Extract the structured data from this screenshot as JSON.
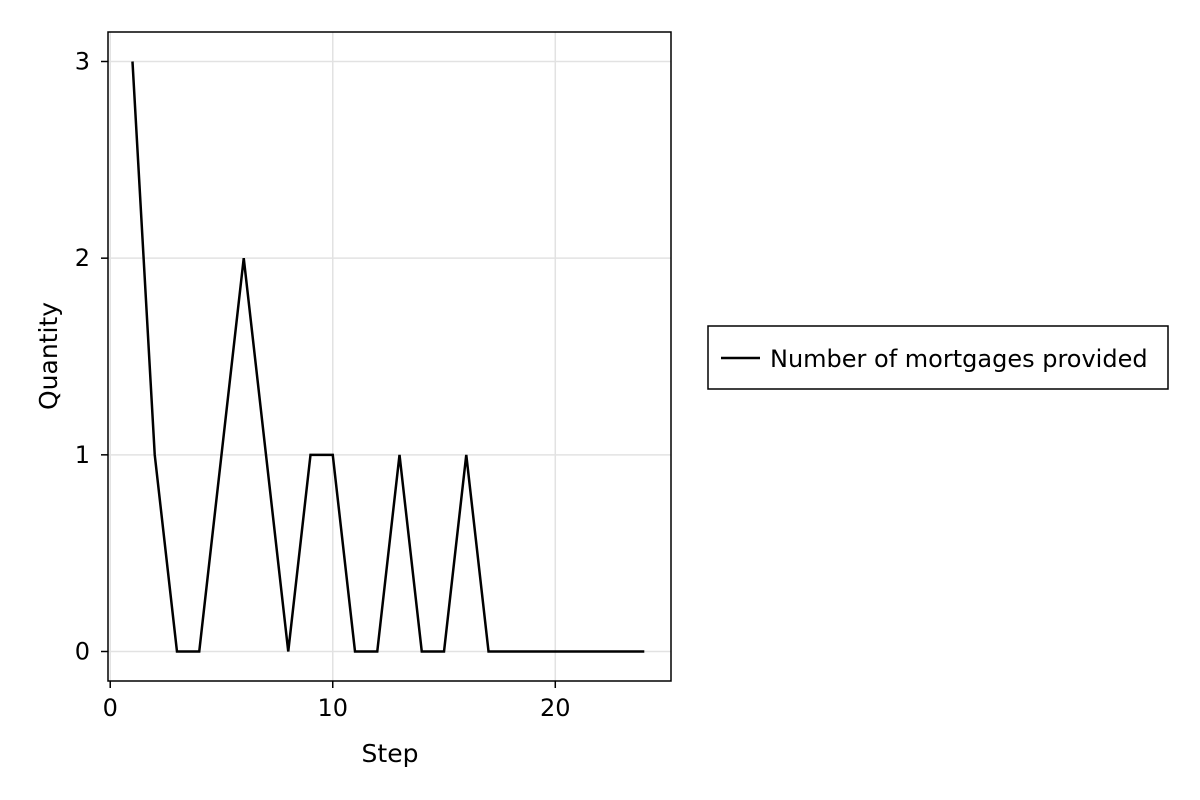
{
  "chart_data": {
    "type": "line",
    "title": "",
    "xlabel": "Step",
    "ylabel": "Quantity",
    "xlim": [
      -0.1,
      25.2
    ],
    "ylim": [
      -0.15,
      3.15
    ],
    "x_ticks": [
      0,
      10,
      20
    ],
    "y_ticks": [
      0,
      1,
      2,
      3
    ],
    "grid": true,
    "legend_position": "right",
    "series": [
      {
        "name": "Number of mortgages provided",
        "color": "#000000",
        "x": [
          1,
          2,
          3,
          4,
          5,
          6,
          7,
          8,
          9,
          10,
          11,
          12,
          13,
          14,
          15,
          16,
          17,
          18,
          19,
          20,
          21,
          22,
          23,
          24
        ],
        "y": [
          3,
          1,
          0,
          0,
          1,
          2,
          1,
          0,
          1,
          1,
          0,
          0,
          1,
          0,
          0,
          1,
          0,
          0,
          0,
          0,
          0,
          0,
          0,
          0
        ]
      }
    ]
  }
}
